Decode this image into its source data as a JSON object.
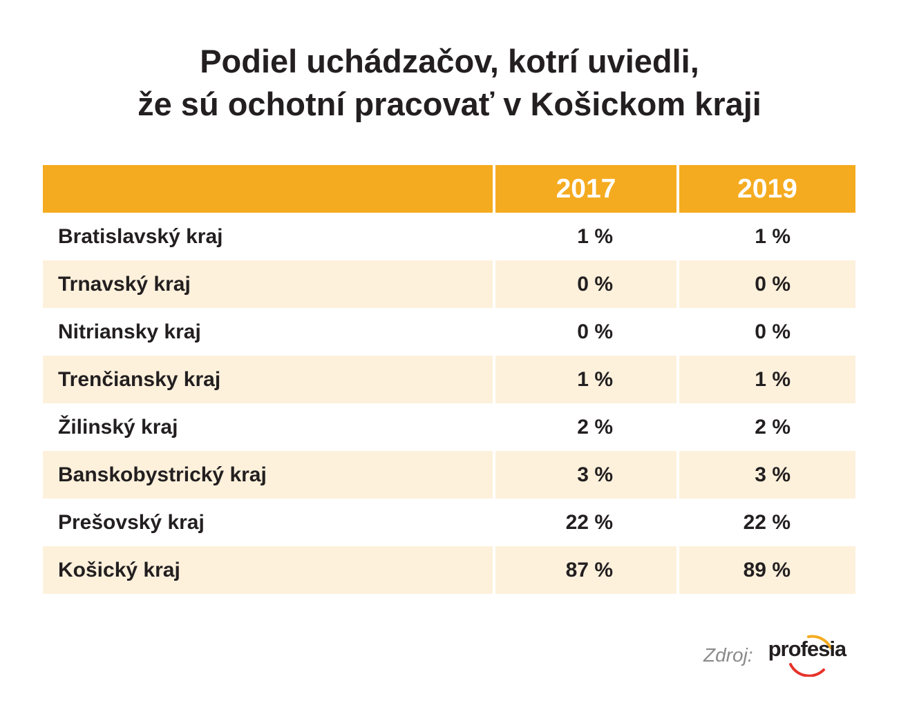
{
  "title_lines": [
    "Podiel uchádzačov, kotrí uviedli,",
    "že sú ochotní pracovať v Košickom kraji"
  ],
  "colors": {
    "header": "#f5ab1f",
    "row_shade": "#fdf1dc",
    "text": "#231f20",
    "source": "#8a8a8a",
    "logo_arc": "#f5ab1f",
    "logo_arc_red": "#e6332a"
  },
  "chart_data": {
    "type": "table",
    "columns": [
      "",
      "2017",
      "2019"
    ],
    "rows": [
      {
        "region": "Bratislavský kraj",
        "v2017": "1 %",
        "v2019": "1 %"
      },
      {
        "region": "Trnavský kraj",
        "v2017": "0 %",
        "v2019": "0 %"
      },
      {
        "region": "Nitriansky kraj",
        "v2017": "0 %",
        "v2019": "0 %"
      },
      {
        "region": "Trenčiansky kraj",
        "v2017": "1 %",
        "v2019": "1 %"
      },
      {
        "region": "Žilinský kraj",
        "v2017": "2 %",
        "v2019": "2 %"
      },
      {
        "region": "Banskobystrický kraj",
        "v2017": "3 %",
        "v2019": "3 %"
      },
      {
        "region": "Prešovský kraj",
        "v2017": "22 %",
        "v2019": "22 %"
      },
      {
        "region": "Košický kraj",
        "v2017": "87 %",
        "v2019": "89 %"
      }
    ]
  },
  "source": {
    "label": "Zdroj:",
    "logo_text": "profesia",
    "logo_icon": "profesia-logo"
  }
}
